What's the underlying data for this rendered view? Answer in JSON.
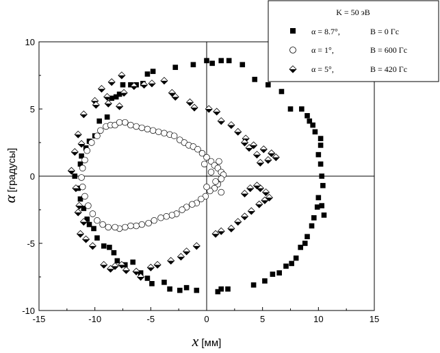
{
  "chart_data": {
    "type": "scatter",
    "title": "",
    "xlabel": "x",
    "xlabel_unit": "[мм]",
    "ylabel": "α",
    "ylabel_unit": "[градусы]",
    "xlim": [
      -15,
      15
    ],
    "ylim": [
      -10,
      10
    ],
    "xticks": [
      -15,
      -10,
      -5,
      0,
      5,
      10,
      15
    ],
    "yticks": [
      -10,
      -5,
      0,
      5,
      10
    ],
    "grid": false,
    "zero_lines": true,
    "legend": {
      "placement": "top-right",
      "header": "K = 50 эВ",
      "entries": [
        {
          "alpha": "α = 8.7°,",
          "field": "B = 0 Гс",
          "marker": "square"
        },
        {
          "alpha": "α = 1°,",
          "field": "B = 600 Гс",
          "marker": "circle"
        },
        {
          "alpha": "α = 5°,",
          "field": "B = 420 Гс",
          "marker": "diamond"
        }
      ]
    },
    "series": [
      {
        "marker": "square",
        "fill": "#000000",
        "points": [
          [
            0.0,
            8.6
          ],
          [
            0.5,
            8.4
          ],
          [
            1.3,
            8.6
          ],
          [
            2.0,
            8.6
          ],
          [
            3.2,
            8.3
          ],
          [
            -1.2,
            8.3
          ],
          [
            -2.8,
            8.1
          ],
          [
            -4.8,
            7.8
          ],
          [
            -5.3,
            7.6
          ],
          [
            -5.7,
            6.9
          ],
          [
            -6.3,
            6.8
          ],
          [
            -6.8,
            6.8
          ],
          [
            -7.5,
            6.8
          ],
          [
            -7.8,
            6.1
          ],
          [
            -8.1,
            5.9
          ],
          [
            -8.5,
            5.8
          ],
          [
            -8.9,
            4.4
          ],
          [
            -9.6,
            4.1
          ],
          [
            -10.0,
            3.0
          ],
          [
            -10.5,
            2.6
          ],
          [
            -10.8,
            2.1
          ],
          [
            -11.2,
            1.5
          ],
          [
            -11.3,
            0.9
          ],
          [
            -11.8,
            0.0
          ],
          [
            -11.5,
            -0.9
          ],
          [
            -11.3,
            -1.7
          ],
          [
            -11.0,
            -2.4
          ],
          [
            -10.7,
            -3.2
          ],
          [
            -10.5,
            -3.6
          ],
          [
            -10.1,
            -3.9
          ],
          [
            -9.8,
            -4.6
          ],
          [
            -9.2,
            -5.2
          ],
          [
            -8.7,
            -5.3
          ],
          [
            -8.3,
            -5.7
          ],
          [
            -8.0,
            -6.3
          ],
          [
            -7.3,
            -6.6
          ],
          [
            -6.6,
            -6.4
          ],
          [
            -5.9,
            -7.2
          ],
          [
            -5.3,
            -7.6
          ],
          [
            -4.9,
            -8.0
          ],
          [
            -3.8,
            -7.9
          ],
          [
            -3.3,
            -8.4
          ],
          [
            -2.4,
            -8.5
          ],
          [
            -1.8,
            -8.3
          ],
          [
            -0.9,
            -8.5
          ],
          [
            1.0,
            -8.6
          ],
          [
            1.3,
            -8.4
          ],
          [
            1.9,
            -8.4
          ],
          [
            4.2,
            -8.1
          ],
          [
            5.2,
            -7.8
          ],
          [
            5.9,
            -7.3
          ],
          [
            6.5,
            -7.2
          ],
          [
            7.1,
            -6.7
          ],
          [
            7.6,
            -6.5
          ],
          [
            8.0,
            -6.1
          ],
          [
            8.4,
            -5.3
          ],
          [
            8.8,
            -5.0
          ],
          [
            9.0,
            -4.5
          ],
          [
            9.4,
            -3.7
          ],
          [
            9.6,
            -3.1
          ],
          [
            9.9,
            -2.3
          ],
          [
            10.0,
            -1.6
          ],
          [
            10.3,
            -2.2
          ],
          [
            10.5,
            -2.9
          ],
          [
            10.4,
            -0.7
          ],
          [
            10.3,
            0.0
          ],
          [
            10.2,
            0.9
          ],
          [
            10.0,
            1.6
          ],
          [
            10.2,
            2.3
          ],
          [
            10.2,
            2.8
          ],
          [
            9.7,
            3.3
          ],
          [
            9.5,
            3.8
          ],
          [
            9.2,
            4.1
          ],
          [
            9.0,
            4.5
          ],
          [
            8.5,
            5.0
          ],
          [
            7.5,
            5.0
          ],
          [
            6.7,
            6.3
          ],
          [
            5.5,
            6.8
          ],
          [
            4.3,
            7.2
          ]
        ]
      },
      {
        "marker": "circle",
        "fill": "#ffffff",
        "points": [
          [
            -9.8,
            3.0
          ],
          [
            -9.5,
            3.4
          ],
          [
            -9.0,
            3.7
          ],
          [
            -8.6,
            3.8
          ],
          [
            -8.2,
            3.8
          ],
          [
            -7.8,
            4.0
          ],
          [
            -7.3,
            4.0
          ],
          [
            -6.8,
            3.8
          ],
          [
            -6.3,
            3.7
          ],
          [
            -5.8,
            3.6
          ],
          [
            -5.3,
            3.5
          ],
          [
            -4.8,
            3.4
          ],
          [
            -4.3,
            3.3
          ],
          [
            -3.8,
            3.2
          ],
          [
            -3.3,
            3.1
          ],
          [
            -2.9,
            3.0
          ],
          [
            -2.4,
            2.7
          ],
          [
            -2.0,
            2.5
          ],
          [
            -1.6,
            2.3
          ],
          [
            -1.2,
            2.2
          ],
          [
            -0.8,
            2.0
          ],
          [
            -0.4,
            1.7
          ],
          [
            0.0,
            1.4
          ],
          [
            0.4,
            1.1
          ],
          [
            0.7,
            0.8
          ],
          [
            1.0,
            0.6
          ],
          [
            1.3,
            0.3
          ],
          [
            1.5,
            0.1
          ],
          [
            1.3,
            -0.2
          ],
          [
            1.0,
            -0.6
          ],
          [
            0.7,
            -0.9
          ],
          [
            0.3,
            -1.1
          ],
          [
            -0.1,
            -1.5
          ],
          [
            -0.5,
            -1.7
          ],
          [
            -0.9,
            -2.0
          ],
          [
            -1.3,
            -2.1
          ],
          [
            -1.8,
            -2.3
          ],
          [
            -2.2,
            -2.5
          ],
          [
            -2.7,
            -2.8
          ],
          [
            -3.1,
            -2.9
          ],
          [
            -3.6,
            -3.0
          ],
          [
            -4.1,
            -3.1
          ],
          [
            -4.7,
            -3.3
          ],
          [
            -5.2,
            -3.5
          ],
          [
            -5.8,
            -3.6
          ],
          [
            -6.3,
            -3.7
          ],
          [
            -6.8,
            -3.7
          ],
          [
            -7.3,
            -3.8
          ],
          [
            -7.8,
            -3.9
          ],
          [
            -8.2,
            -3.8
          ],
          [
            -8.8,
            -3.8
          ],
          [
            -9.3,
            -3.6
          ],
          [
            -9.8,
            -3.3
          ],
          [
            -10.2,
            -2.8
          ],
          [
            -10.6,
            -2.2
          ],
          [
            -10.9,
            -1.5
          ],
          [
            -11.1,
            -0.8
          ],
          [
            -11.2,
            -0.1
          ],
          [
            -11.1,
            0.6
          ],
          [
            -10.9,
            1.2
          ],
          [
            -10.7,
            1.9
          ],
          [
            -10.3,
            2.5
          ],
          [
            1.1,
            1.1
          ],
          [
            1.3,
            -1.2
          ],
          [
            0.4,
            0.3
          ],
          [
            0.8,
            -0.4
          ],
          [
            -0.2,
            0.9
          ],
          [
            0.0,
            -0.8
          ]
        ]
      },
      {
        "marker": "diamond",
        "fill": "#000000",
        "points": [
          [
            -7.6,
            7.5
          ],
          [
            -8.5,
            7.0
          ],
          [
            -9.4,
            6.5
          ],
          [
            -10.0,
            5.6
          ],
          [
            -9.9,
            5.3
          ],
          [
            -8.9,
            5.9
          ],
          [
            -8.8,
            5.4
          ],
          [
            -7.8,
            5.2
          ],
          [
            -7.4,
            6.2
          ],
          [
            -6.5,
            6.7
          ],
          [
            -5.6,
            6.8
          ],
          [
            -4.9,
            6.9
          ],
          [
            -3.8,
            7.1
          ],
          [
            -3.1,
            6.2
          ],
          [
            -2.8,
            5.9
          ],
          [
            -1.5,
            5.5
          ],
          [
            -1.1,
            5.1
          ],
          [
            0.2,
            5.0
          ],
          [
            0.9,
            4.8
          ],
          [
            1.3,
            4.1
          ],
          [
            2.2,
            3.8
          ],
          [
            2.8,
            3.3
          ],
          [
            3.5,
            2.8
          ],
          [
            4.2,
            2.3
          ],
          [
            5.1,
            2.0
          ],
          [
            5.8,
            1.7
          ],
          [
            6.2,
            1.4
          ],
          [
            5.5,
            1.2
          ],
          [
            4.8,
            1.0
          ],
          [
            4.5,
            1.6
          ],
          [
            3.8,
            2.1
          ],
          [
            3.4,
            2.5
          ],
          [
            -11.0,
            4.6
          ],
          [
            -11.5,
            3.1
          ],
          [
            -11.2,
            2.4
          ],
          [
            -11.8,
            1.8
          ],
          [
            -12.1,
            0.4
          ],
          [
            -11.7,
            -0.9
          ],
          [
            -11.4,
            -2.2
          ],
          [
            -11.5,
            -2.7
          ],
          [
            -11.0,
            -3.4
          ],
          [
            -11.3,
            -4.3
          ],
          [
            -10.8,
            -4.7
          ],
          [
            -10.2,
            -5.2
          ],
          [
            -9.2,
            -6.6
          ],
          [
            -8.6,
            -6.9
          ],
          [
            -8.2,
            -6.7
          ],
          [
            -7.6,
            -6.6
          ],
          [
            -7.2,
            -7.0
          ],
          [
            -6.3,
            -7.1
          ],
          [
            -5.9,
            -7.5
          ],
          [
            -5.0,
            -6.8
          ],
          [
            -4.4,
            -6.6
          ],
          [
            -3.2,
            -6.3
          ],
          [
            -2.3,
            -6.0
          ],
          [
            -1.8,
            -5.6
          ],
          [
            -0.9,
            -5.2
          ],
          [
            0.8,
            -4.3
          ],
          [
            1.3,
            -4.1
          ],
          [
            2.2,
            -3.9
          ],
          [
            2.8,
            -3.4
          ],
          [
            3.4,
            -3.0
          ],
          [
            4.0,
            -2.6
          ],
          [
            4.7,
            -2.1
          ],
          [
            5.2,
            -1.8
          ],
          [
            5.6,
            -1.6
          ],
          [
            5.3,
            -1.2
          ],
          [
            4.8,
            -0.9
          ],
          [
            4.5,
            -0.7
          ],
          [
            3.9,
            -0.9
          ],
          [
            3.4,
            -1.3
          ]
        ]
      }
    ]
  }
}
